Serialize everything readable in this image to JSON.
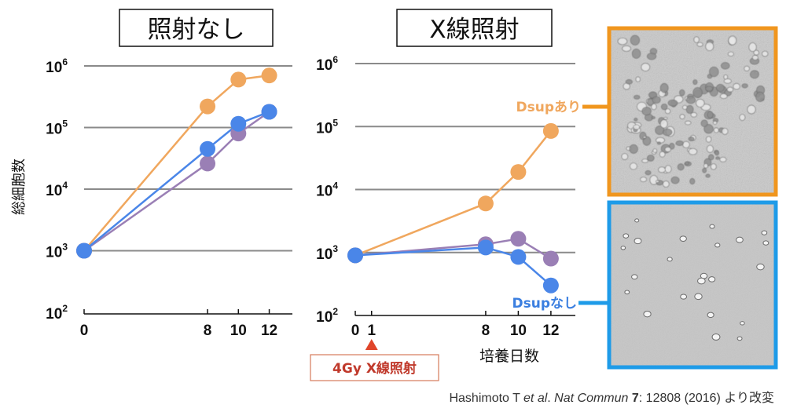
{
  "chart_data": [
    {
      "type": "line",
      "title": "照射なし",
      "ylabel": "総細胞数",
      "xlabel": "",
      "yscale": "log",
      "ylim": [
        100,
        1000000
      ],
      "y_ticks": [
        {
          "base": "10",
          "exp": "2",
          "value": 100
        },
        {
          "base": "10",
          "exp": "3",
          "value": 1000
        },
        {
          "base": "10",
          "exp": "4",
          "value": 10000
        },
        {
          "base": "10",
          "exp": "5",
          "value": 100000
        },
        {
          "base": "10",
          "exp": "6",
          "value": 1000000
        }
      ],
      "x_ticks": [
        "0",
        "8",
        "10",
        "12"
      ],
      "xlim": [
        0,
        13.5
      ],
      "series": [
        {
          "color": "#f0a75e",
          "x": [
            0,
            8,
            10,
            12
          ],
          "y": [
            1000,
            220000,
            600000,
            700000
          ]
        },
        {
          "color": "#9a7fb5",
          "x": [
            0,
            8,
            10,
            12
          ],
          "y": [
            1000,
            26000,
            80000,
            180000
          ]
        },
        {
          "color": "#4a86e8",
          "x": [
            0,
            8,
            10,
            12
          ],
          "y": [
            1000,
            45000,
            115000,
            180000
          ]
        }
      ]
    },
    {
      "type": "line",
      "title": "X線照射",
      "ylabel": "",
      "xlabel": "培養日数",
      "yscale": "log",
      "ylim": [
        100,
        1000000
      ],
      "y_ticks": [
        {
          "base": "10",
          "exp": "2",
          "value": 100
        },
        {
          "base": "10",
          "exp": "3",
          "value": 1000
        },
        {
          "base": "10",
          "exp": "4",
          "value": 10000
        },
        {
          "base": "10",
          "exp": "5",
          "value": 100000
        },
        {
          "base": "10",
          "exp": "6",
          "value": 1000000
        }
      ],
      "x_ticks": [
        "0",
        "1",
        "8",
        "10",
        "12"
      ],
      "xlim": [
        0,
        13.5
      ],
      "series": [
        {
          "name": "Dsupあり",
          "color": "#f0a75e",
          "x": [
            0,
            8,
            10,
            12
          ],
          "y": [
            900,
            6000,
            19000,
            85000
          ]
        },
        {
          "color": "#9a7fb5",
          "x": [
            0,
            8,
            10,
            12
          ],
          "y": [
            900,
            1350,
            1650,
            800
          ]
        },
        {
          "name": "Dsupなし",
          "color": "#4a86e8",
          "x": [
            0,
            8,
            10,
            12
          ],
          "y": [
            900,
            1200,
            850,
            300
          ]
        }
      ],
      "annotation": "4Gy X線照射",
      "annotation_x": 1
    }
  ],
  "photos": {
    "top_border": "#f0961e",
    "bottom_border": "#1e9be8"
  },
  "citation": {
    "authors": "Hashimoto T ",
    "etal": "et al",
    "sep1": ". ",
    "journal": "Nat Commun",
    "sp": " ",
    "volume": "7",
    "rest": ": 12808 (2016) より改変"
  }
}
